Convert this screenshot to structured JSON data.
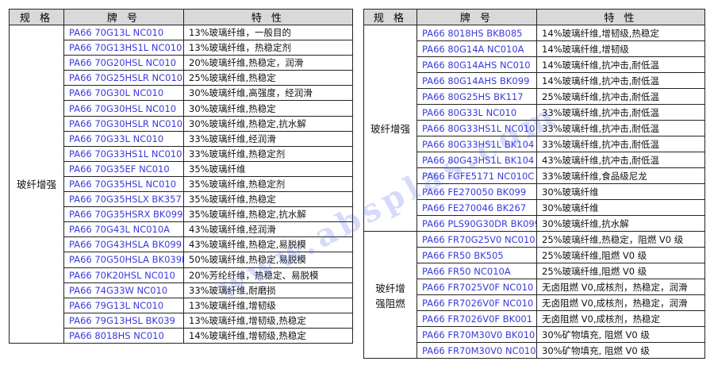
{
  "headers": {
    "spec": "规 格",
    "grade": "牌 号",
    "property": "特 性"
  },
  "watermark": "www.absplas.com",
  "left": {
    "groups": [
      {
        "label": "玻纤增强",
        "rows": [
          [
            "PA66 70G13L NC010",
            "13%玻璃纤维，一般目的"
          ],
          [
            "PA66 70G13HS1L NC010",
            "13%玻璃纤维，热稳定剂"
          ],
          [
            "PA66 70G20HSL NC010",
            "20%玻璃纤维,热稳定，润滑"
          ],
          [
            "PA66 70G25HSLR NC010",
            "25%玻璃纤维,热稳定"
          ],
          [
            "PA66 70G30L NC010",
            "30%玻璃纤维,高强度，经润滑"
          ],
          [
            "PA66 70G30HSL NC010",
            "30%玻璃纤维,热稳定"
          ],
          [
            "PA66 70G30HSLR NC010",
            "30%玻璃纤维,热稳定,抗水解"
          ],
          [
            "PA66 70G33L NC010",
            "33%玻璃纤维,经润滑"
          ],
          [
            "PA66 70G33HS1L NC010",
            "33%玻璃纤维,热稳定剂"
          ],
          [
            "PA66 70G35EF NC010",
            "35%玻璃纤维"
          ],
          [
            "PA66 70G35HSL NC010",
            "35%玻璃纤维,热稳定剂"
          ],
          [
            "PA66 70G35HSLX BK357",
            "35%玻璃纤维,热稳定"
          ],
          [
            "PA66 70G35HSRX BK099",
            "35%玻璃纤维,热稳定,抗水解"
          ],
          [
            "PA66 70G43L NC010A",
            "43%玻璃纤维,经润滑"
          ],
          [
            "PA66 70G43HSLA BK099",
            "43%玻璃纤维,热稳定,易脱模"
          ],
          [
            "PA66 70G50HSLA BK039B",
            "50%玻璃纤维,热稳定,易脱模"
          ],
          [
            "PA66 70K20HSL NC010",
            "20%芳纶纤维，热稳定、易脱模"
          ],
          [
            "PA66 74G33W NC010",
            "33%玻璃纤维,耐磨损"
          ],
          [
            "PA66 79G13L NC010",
            "13%玻璃纤维,增韧级"
          ],
          [
            "PA66 79G13HSL BK039",
            "13%玻璃纤维,增韧级,热稳定"
          ],
          [
            "PA66 8018HS NC010",
            "14%玻璃纤维,增韧级,热稳定"
          ]
        ]
      }
    ]
  },
  "right": {
    "groups": [
      {
        "label": "玻纤增强",
        "rows": [
          [
            "PA66 8018HS BKB085",
            "14%玻璃纤维,增韧级,热稳定"
          ],
          [
            "PA66 80G14A NC010A",
            "14%玻璃纤维,增韧级"
          ],
          [
            "PA66 80G14AHS NC010",
            "14%玻璃纤维,抗冲击,耐低温"
          ],
          [
            "PA66 80G14AHS BK099",
            "14%玻璃纤维,抗冲击,耐低温"
          ],
          [
            "PA66 80G25HS BK117",
            "25%玻璃纤维,抗冲击,耐低温"
          ],
          [
            "PA66 80G33L NC010",
            "33%玻璃纤维,抗冲击,耐低温"
          ],
          [
            "PA66 80G33HS1L NC010",
            "33%玻璃纤维,抗冲击,耐低温"
          ],
          [
            "PA66 80G33HS1L BK104",
            "33%玻璃纤维,抗冲击,耐低温"
          ],
          [
            "PA66 80G43HS1L BK104",
            "43%玻璃纤维,抗冲击,耐低温"
          ],
          [
            "PA66 FGFE5171 NC010C",
            "33%玻璃纤维,食品级尼龙"
          ],
          [
            "PA66 FE270050 BK099",
            "30%玻璃纤维"
          ],
          [
            "PA66 FE270046 BK267",
            "30%玻璃纤维"
          ],
          [
            "PA66 PLS90G30DR BK099",
            "30%玻璃纤维,抗水解"
          ]
        ]
      },
      {
        "label": "玻纤增强阻燃",
        "rows": [
          [
            "PA66 FR70G25V0 NC010",
            "25%玻璃纤维,热稳定，阻燃 V0 级"
          ],
          [
            "PA66 FR50 BK505",
            "25%玻璃纤维,阻燃 V0 级"
          ],
          [
            "PA66 FR50 NC010A",
            "25%玻璃纤维,阻燃 V0 级"
          ],
          [
            "PA66 FR7025V0F NC010",
            "无卤阻燃 V0,成核剂，热稳定，润滑"
          ],
          [
            "PA66 FR7026V0F NC010",
            "无卤阻燃 V0,成核剂，热稳定，润滑"
          ],
          [
            "PA66 FR7026V0F BK001",
            "无卤阻燃 V0,成核剂，热稳定"
          ],
          [
            "PA66 FR70M30V0 BK010",
            "30%矿物填充, 阻燃 V0 级"
          ],
          [
            "PA66 FR70M30V0 NC010",
            "30%矿物填充, 阻燃 V0 级"
          ]
        ]
      }
    ]
  }
}
